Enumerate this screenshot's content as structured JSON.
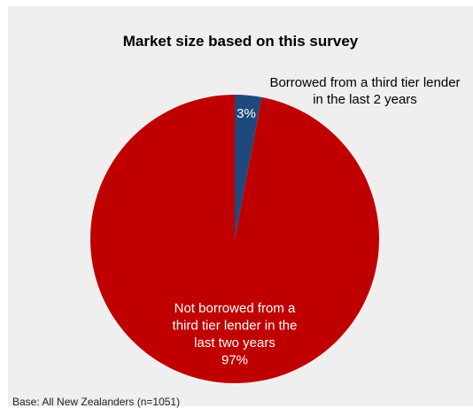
{
  "chart_data": {
    "type": "pie",
    "title": "Market size based on this survey",
    "slices": [
      {
        "label_lines": [
          "Borrowed from a third tier lender",
          "in the last 2 years"
        ],
        "value": 3,
        "value_label": "3%",
        "color": "#1f497d"
      },
      {
        "label_lines": [
          "Not borrowed from a",
          "third tier lender in the",
          "last two years"
        ],
        "value": 97,
        "value_label": "97%",
        "color": "#c00000"
      }
    ]
  },
  "footnote": "Base: All New Zealanders (n=1051)"
}
